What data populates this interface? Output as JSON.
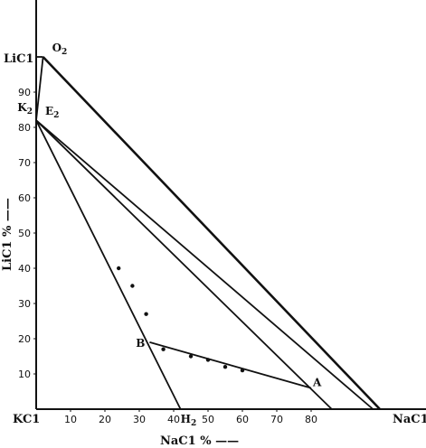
{
  "chart_data": {
    "type": "ternary-phase-diagram",
    "corners": {
      "origin": "KC1",
      "y_axis_end": "LiC1",
      "x_axis_end": "NaC1"
    },
    "ylabel": "LiC1 % ——",
    "xlabel": "NaC1 % ——",
    "y_ticks": [
      "10",
      "20",
      "30",
      "40",
      "50",
      "60",
      "70",
      "80",
      "90"
    ],
    "x_ticks": [
      "10",
      "20",
      "30",
      "40",
      "50",
      "60",
      "70",
      "80"
    ],
    "points": [
      {
        "label": "O2",
        "x": 2,
        "y": 100
      },
      {
        "label": "K2",
        "x": 0,
        "y": 82
      },
      {
        "label": "E2",
        "x": 0,
        "y": 82
      },
      {
        "label": "B",
        "x": 33,
        "y": 19
      },
      {
        "label": "A",
        "x": 80,
        "y": 6
      },
      {
        "label": "H2",
        "x": 42,
        "y": 0
      }
    ],
    "lines": [
      {
        "from": [
          0,
          100
        ],
        "to": [
          2,
          100
        ]
      },
      {
        "from": [
          2,
          100
        ],
        "to": [
          0,
          82
        ]
      },
      {
        "from": [
          2,
          100
        ],
        "to": [
          100,
          0
        ]
      },
      {
        "from": [
          0,
          82
        ],
        "to": [
          98,
          0
        ]
      },
      {
        "from": [
          0,
          82
        ],
        "to": [
          86,
          0
        ]
      },
      {
        "from": [
          0,
          82
        ],
        "to": [
          42,
          0
        ]
      },
      {
        "from": [
          33,
          19
        ],
        "to": [
          80,
          6
        ]
      }
    ],
    "marked_points": [
      [
        24,
        40
      ],
      [
        28,
        35
      ],
      [
        32,
        27
      ],
      [
        37,
        17
      ],
      [
        45,
        15
      ],
      [
        50,
        14
      ],
      [
        55,
        12
      ],
      [
        60,
        11
      ]
    ]
  }
}
